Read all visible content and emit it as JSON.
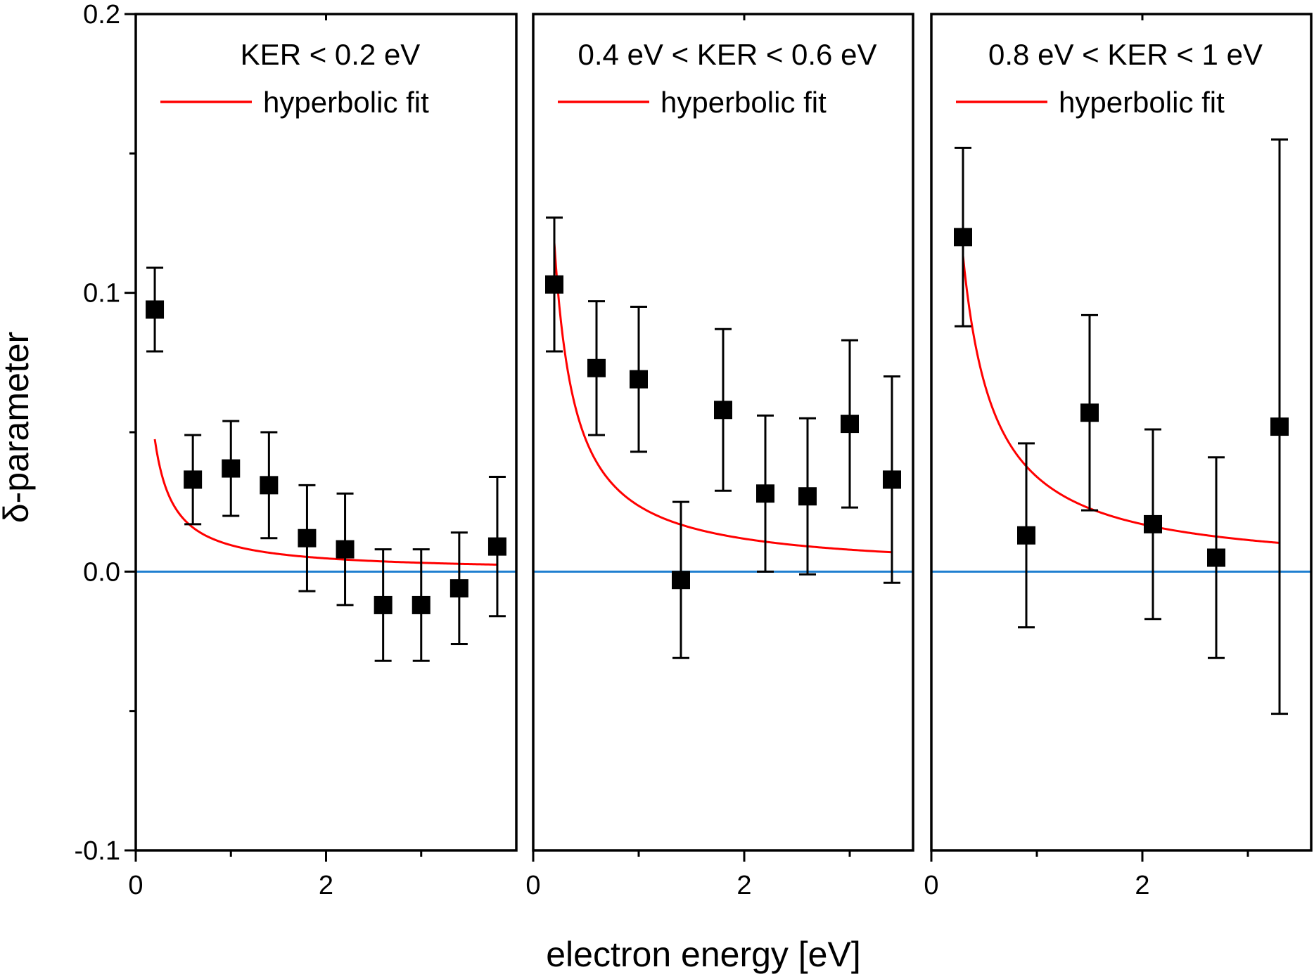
{
  "chart_data": {
    "type": "scatter",
    "xlabel": "electron energy [eV]",
    "ylabel": "δ-parameter",
    "ylim": [
      -0.1,
      0.2
    ],
    "yticks_major": [
      -0.1,
      0.0,
      0.1,
      0.2
    ],
    "ytick_labels": [
      "-0.1",
      "0.0",
      "0.1",
      "0.2"
    ],
    "yticks_minor": [
      -0.05,
      0.05,
      0.15
    ],
    "reference_line": {
      "y": 0.0,
      "color": "#1f7fd0"
    },
    "colors": {
      "points": "#000000",
      "fit": "#ff0000",
      "frame": "#000000"
    },
    "panels": [
      {
        "title": "KER < 0.2 eV",
        "legend": "hyperbolic fit",
        "xlim": [
          0,
          4.0
        ],
        "xticks_major": [
          0,
          2
        ],
        "xtick_labels": [
          "0",
          "2"
        ],
        "xticks_minor": [
          1,
          3
        ],
        "points": [
          {
            "x": 0.2,
            "y": 0.094,
            "err": 0.015
          },
          {
            "x": 0.6,
            "y": 0.033,
            "err": 0.016
          },
          {
            "x": 1.0,
            "y": 0.037,
            "err": 0.017
          },
          {
            "x": 1.4,
            "y": 0.031,
            "err": 0.019
          },
          {
            "x": 1.8,
            "y": 0.012,
            "err": 0.019
          },
          {
            "x": 2.2,
            "y": 0.008,
            "err": 0.02
          },
          {
            "x": 2.6,
            "y": -0.012,
            "err": 0.02
          },
          {
            "x": 3.0,
            "y": -0.012,
            "err": 0.02
          },
          {
            "x": 3.4,
            "y": -0.006,
            "err": 0.02
          },
          {
            "x": 3.8,
            "y": 0.009,
            "err": 0.025
          }
        ],
        "fit": {
          "a": 0.0095,
          "b": 0.0,
          "x_start": 0.2,
          "x_end": 3.8
        }
      },
      {
        "title": "0.4 eV < KER < 0.6 eV",
        "legend": "hyperbolic fit",
        "xlim": [
          0,
          3.6
        ],
        "xticks_major": [
          0,
          2
        ],
        "xtick_labels": [
          "0",
          "2"
        ],
        "xticks_minor": [
          1,
          3
        ],
        "points": [
          {
            "x": 0.2,
            "y": 0.103,
            "err": 0.024
          },
          {
            "x": 0.6,
            "y": 0.073,
            "err": 0.024
          },
          {
            "x": 1.0,
            "y": 0.069,
            "err": 0.026
          },
          {
            "x": 1.4,
            "y": -0.003,
            "err": 0.028
          },
          {
            "x": 1.8,
            "y": 0.058,
            "err": 0.029
          },
          {
            "x": 2.2,
            "y": 0.028,
            "err": 0.028
          },
          {
            "x": 2.6,
            "y": 0.027,
            "err": 0.028
          },
          {
            "x": 3.0,
            "y": 0.053,
            "err": 0.03
          },
          {
            "x": 3.4,
            "y": 0.033,
            "err": 0.037
          }
        ],
        "fit": {
          "a": 0.0236,
          "b": 0.0,
          "x_start": 0.2,
          "x_end": 3.4
        }
      },
      {
        "title": "0.8 eV < KER < 1 eV",
        "legend": "hyperbolic fit",
        "xlim": [
          0,
          3.6
        ],
        "xticks_major": [
          0,
          2
        ],
        "xtick_labels": [
          "0",
          "2"
        ],
        "xticks_minor": [
          1,
          3
        ],
        "points": [
          {
            "x": 0.3,
            "y": 0.12,
            "err": 0.032
          },
          {
            "x": 0.9,
            "y": 0.013,
            "err": 0.033
          },
          {
            "x": 1.5,
            "y": 0.057,
            "err": 0.035
          },
          {
            "x": 2.1,
            "y": 0.017,
            "err": 0.034
          },
          {
            "x": 2.7,
            "y": 0.005,
            "err": 0.036
          },
          {
            "x": 3.3,
            "y": 0.052,
            "err": 0.103
          }
        ],
        "fit": {
          "a": 0.034,
          "b": 0.0,
          "x_start": 0.3,
          "x_end": 3.3
        }
      }
    ]
  }
}
